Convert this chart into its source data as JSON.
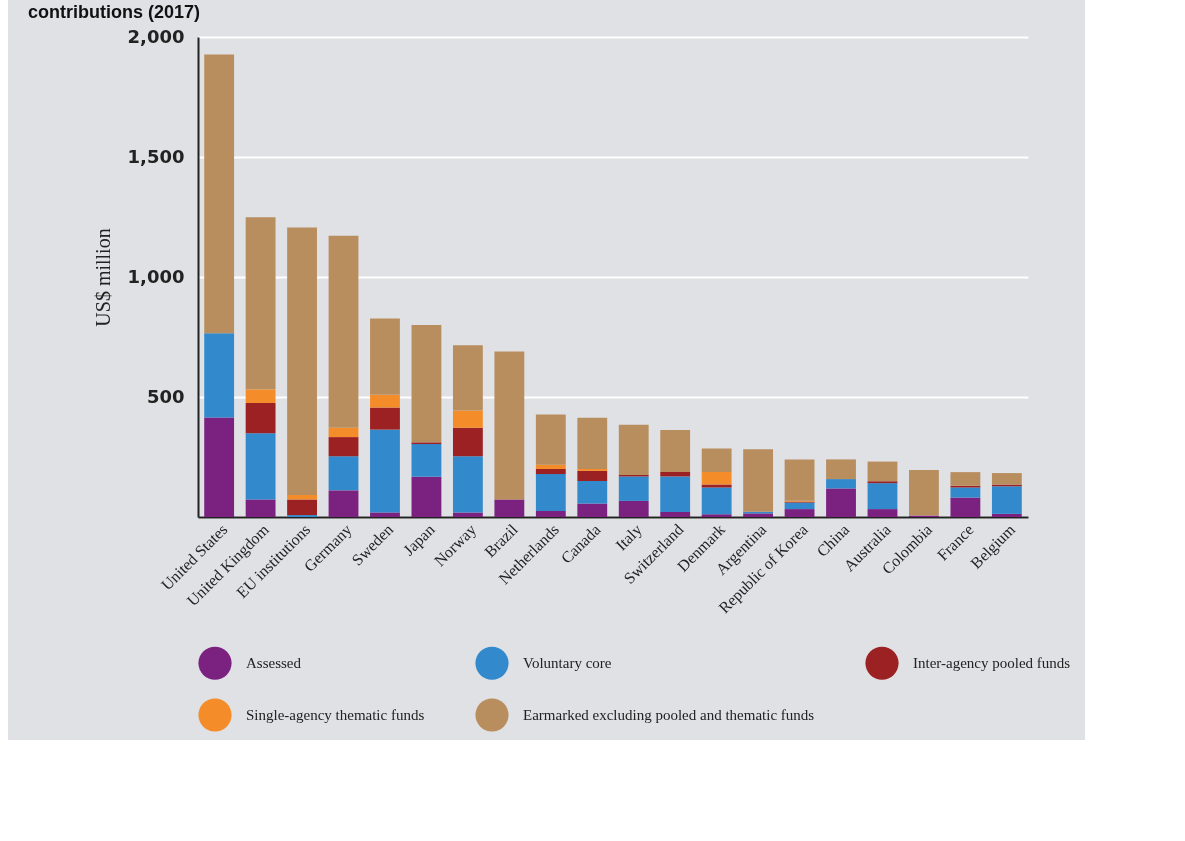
{
  "chart_data": {
    "type": "bar",
    "title": "contributions (2017)",
    "ylabel": "US$ million",
    "stacked": true,
    "grid": "y",
    "legend": "bottom",
    "categories": [
      "United States",
      "United Kingdom",
      "EU institutions",
      "Germany",
      "Sweden",
      "Japan",
      "Norway",
      "Brazil",
      "Netherlands",
      "Canada",
      "Italy",
      "Switzerland",
      "Denmark",
      "Argentina",
      "Republic of Korea",
      "China",
      "Australia",
      "Colombia",
      "France",
      "Belgium"
    ],
    "ylim": [
      0,
      2000
    ],
    "yticks": [
      {
        "value": 0,
        "label": null
      },
      {
        "value": 500,
        "label": "500"
      },
      {
        "value": 1000,
        "label": "1,000"
      },
      {
        "value": 1500,
        "label": "1,500"
      },
      {
        "value": 2000,
        "label": "2,000"
      }
    ],
    "series": [
      {
        "name": "Assessed",
        "color": "#7b2281",
        "values": [
          415,
          73,
          0,
          111,
          19,
          168,
          19,
          73,
          25,
          56,
          67,
          21,
          11,
          15,
          33,
          119,
          33,
          6,
          81,
          13
        ]
      },
      {
        "name": "Voluntary core",
        "color": "#3289cc",
        "values": [
          351,
          276,
          8,
          142,
          345,
          136,
          234,
          0,
          154,
          94,
          102,
          148,
          112,
          7,
          27,
          39,
          108,
          0,
          42,
          115
        ]
      },
      {
        "name": "Inter-agency pooled funds",
        "color": "#9c2123",
        "values": [
          0,
          126,
          65,
          80,
          92,
          7,
          119,
          null,
          21,
          42,
          6,
          19,
          12,
          0,
          4,
          0,
          8,
          0,
          7,
          7
        ]
      },
      {
        "name": "Single-agency thematic funds",
        "color": "#f58c2a",
        "values": [
          0,
          57,
          19,
          39,
          53,
          0,
          72,
          0,
          18,
          8,
          0,
          0,
          52,
          0,
          4,
          0,
          0,
          0,
          0,
          0
        ]
      },
      {
        "name": "Earmarked excluding pooled and thematic funds",
        "color": "#b98e5f",
        "values": [
          1161,
          717,
          1114,
          800,
          318,
          489,
          272,
          617,
          209,
          214,
          209,
          175,
          98,
          260,
          172,
          82,
          82,
          190,
          57,
          48
        ]
      }
    ]
  }
}
